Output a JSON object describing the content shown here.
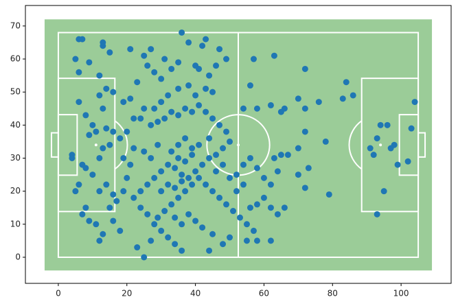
{
  "chart_data": {
    "type": "scatter",
    "color": "#1f77b4",
    "pitch_color": "#9bcc98",
    "grid": false,
    "xlim": [
      -9.6,
      114.6
    ],
    "ylim": [
      -7.9,
      76.2
    ],
    "xticks": [
      0,
      20,
      40,
      60,
      80,
      100
    ],
    "yticks": [
      0,
      10,
      20,
      30,
      40,
      50,
      60,
      70
    ],
    "x": [
      6,
      7,
      5,
      9,
      13,
      13,
      15,
      12,
      6,
      14,
      16,
      13,
      12,
      6,
      8,
      10,
      9,
      11,
      14,
      16,
      18,
      15,
      13,
      12,
      4,
      4,
      7,
      8,
      10,
      6,
      5,
      12,
      14,
      16,
      15,
      8,
      7,
      9,
      11,
      13,
      16,
      12,
      18,
      17,
      19,
      20,
      21,
      19,
      22,
      20,
      22,
      19,
      21,
      23,
      21,
      25,
      27,
      26,
      28,
      30,
      31,
      33,
      35,
      36,
      38,
      40,
      42,
      43,
      41,
      44,
      46,
      47,
      49,
      45,
      43,
      40,
      38,
      35,
      32,
      30,
      28,
      25,
      24,
      27,
      29,
      31,
      33,
      35,
      37,
      39,
      41,
      43,
      45,
      47,
      49,
      50,
      48,
      46,
      44,
      42,
      40,
      38,
      36,
      34,
      32,
      30,
      28,
      26,
      24,
      22,
      24,
      26,
      28,
      30,
      32,
      34,
      36,
      25,
      23,
      27,
      29,
      31,
      33,
      35,
      37,
      39,
      41,
      43,
      45,
      47,
      49,
      51,
      53,
      55,
      57,
      50,
      45,
      42,
      40,
      38,
      36,
      34,
      44,
      48,
      52,
      54,
      56,
      58,
      60,
      62,
      60,
      58,
      56,
      62,
      64,
      66,
      55,
      58,
      62,
      63,
      65,
      67,
      64,
      70,
      72,
      73,
      70,
      72,
      72,
      72,
      63,
      57,
      56,
      54,
      58,
      62,
      65,
      66,
      70,
      76,
      78,
      79,
      83,
      84,
      86,
      91,
      92,
      93,
      94,
      96,
      97,
      98,
      99,
      102,
      103,
      104,
      95,
      93,
      33,
      35,
      37,
      39,
      41,
      37,
      35,
      39,
      44,
      46,
      48,
      50,
      52,
      54,
      30,
      32,
      34,
      36,
      25,
      27,
      29
    ],
    "y": [
      66,
      66,
      60,
      59,
      65,
      64,
      62,
      55,
      56,
      51,
      50,
      45,
      49,
      47,
      43,
      40,
      37,
      38,
      39,
      38,
      36,
      34,
      33,
      30,
      31,
      30,
      28,
      27,
      25,
      22,
      20,
      20,
      22,
      19,
      15,
      15,
      13,
      11,
      10,
      7,
      11,
      5,
      8,
      17,
      20,
      24,
      28,
      30,
      33,
      38,
      42,
      47,
      48,
      53,
      63,
      61,
      63,
      58,
      56,
      54,
      60,
      57,
      59,
      68,
      65,
      58,
      64,
      66,
      57,
      55,
      58,
      63,
      60,
      50,
      51,
      49,
      52,
      51,
      49,
      47,
      45,
      45,
      42,
      40,
      41,
      42,
      44,
      43,
      45,
      44,
      46,
      44,
      42,
      40,
      38,
      35,
      33,
      31,
      30,
      28,
      26,
      24,
      25,
      27,
      28,
      26,
      24,
      22,
      20,
      18,
      15,
      13,
      10,
      8,
      6,
      4,
      2,
      0,
      3,
      5,
      12,
      14,
      16,
      18,
      20,
      22,
      24,
      22,
      20,
      18,
      16,
      14,
      12,
      10,
      8,
      6,
      7,
      9,
      11,
      13,
      10,
      12,
      2,
      4,
      25,
      28,
      30,
      27,
      24,
      22,
      18,
      16,
      15,
      15,
      13,
      15,
      5,
      5,
      5,
      30,
      31,
      31,
      26,
      25,
      21,
      27,
      33,
      38,
      45,
      57,
      61,
      60,
      52,
      45,
      45,
      46,
      44,
      45,
      48,
      47,
      35,
      19,
      48,
      53,
      49,
      33,
      31,
      36,
      40,
      40,
      33,
      34,
      28,
      29,
      39,
      47,
      20,
      13,
      32,
      34,
      36,
      33,
      34,
      29,
      30,
      31,
      36,
      26,
      28,
      24,
      20,
      22,
      20,
      22,
      21,
      23,
      32,
      30,
      34
    ]
  }
}
